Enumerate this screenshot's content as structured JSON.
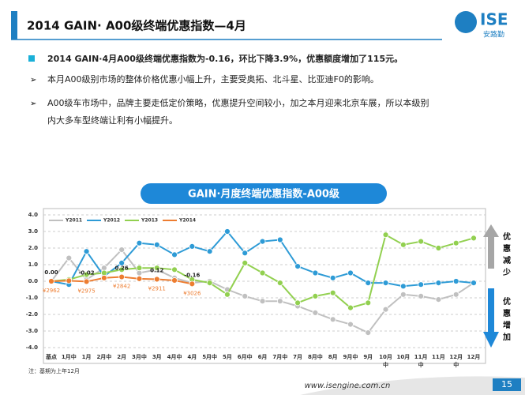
{
  "header": {
    "title": "2014 GAIN· A00级终端优惠指数—4月",
    "logo": "ISE",
    "logo_sub": "安路勤"
  },
  "bullets": [
    [
      "2014 GAIN·4月A00级终端优惠指数为-0.16，环比下降3.9%，优惠额度增加了115元。"
    ],
    [
      "本月A00级别市场的整体价格优惠小幅上升，主要受奥拓、北斗星、比亚迪F0的影响。"
    ],
    [
      "A00级车市场中，品牌主要走低定价策略，优惠提升空间较小，加之本月迎来北京车展，所以本级别",
      "内大多车型终端让利有小幅提升。"
    ]
  ],
  "chart_data": {
    "type": "line",
    "title": "GAIN·月度终端优惠指数-A00级",
    "categories": [
      "基点",
      "1月中",
      "1月",
      "2月中",
      "2月",
      "3月中",
      "3月",
      "4月中",
      "4月",
      "5月中",
      "5月",
      "6月中",
      "6月",
      "7月中",
      "7月",
      "8月中",
      "8月",
      "9月中",
      "9月",
      "10月中",
      "10月",
      "11月中",
      "11月",
      "12月中",
      "12月"
    ],
    "ylim": [
      -4,
      4
    ],
    "yticks": [
      {
        "value": -4,
        "label": "-4.0"
      },
      {
        "value": -3,
        "label": "-3.0"
      },
      {
        "value": -2,
        "label": "-2.0"
      },
      {
        "value": -1,
        "label": "-1.0"
      },
      {
        "value": 0,
        "label": "0.0"
      },
      {
        "value": 1,
        "label": "1.0"
      },
      {
        "value": 2,
        "label": "2.0"
      },
      {
        "value": 3,
        "label": "3.0"
      },
      {
        "value": 4,
        "label": "4.0"
      }
    ],
    "grid": true,
    "legend": "top-left",
    "series": [
      {
        "name": "Y2011",
        "color": "#c0c0c0",
        "values": [
          0,
          1.4,
          0.1,
          0.8,
          1.9,
          0.5,
          0.7,
          0.2,
          -0.1,
          0,
          -0.5,
          -0.9,
          -1.2,
          -1.2,
          -1.5,
          -1.9,
          -2.3,
          -2.6,
          -3.1,
          -1.7,
          -0.8,
          -0.9,
          -1.1,
          -0.8,
          -0.1
        ]
      },
      {
        "name": "Y2012",
        "color": "#2e9bd6",
        "values": [
          0,
          -0.2,
          1.8,
          0.3,
          1.1,
          2.3,
          2.2,
          1.6,
          2.1,
          1.8,
          3.0,
          1.7,
          2.4,
          2.5,
          0.9,
          0.5,
          0.2,
          0.5,
          -0.1,
          -0.1,
          -0.3,
          -0.2,
          -0.1,
          0.0,
          -0.1
        ]
      },
      {
        "name": "Y2013",
        "color": "#92d050",
        "values": [
          0,
          0.1,
          0.4,
          0.5,
          0.7,
          0.8,
          0.8,
          0.7,
          0.1,
          -0.1,
          -0.8,
          1.1,
          0.5,
          -0.1,
          -1.3,
          -0.9,
          -0.7,
          -1.6,
          -1.3,
          2.8,
          2.2,
          2.4,
          2.0,
          2.3,
          2.6
        ]
      },
      {
        "name": "Y2014",
        "color": "#ed7d31",
        "values": [
          0,
          0.03,
          -0.02,
          0.2,
          0.26,
          0.15,
          0.12,
          0.05,
          -0.16,
          null,
          null,
          null,
          null,
          null,
          null,
          null,
          null,
          null,
          null,
          null,
          null,
          null,
          null,
          null,
          null
        ],
        "value_labels": [
          "0.00",
          null,
          "-0.02",
          null,
          "0.26",
          null,
          "0.12",
          null,
          "-0.16",
          null,
          null,
          null,
          null,
          null,
          null,
          null,
          null,
          null,
          null,
          null,
          null,
          null,
          null,
          null,
          null
        ],
        "amount_labels": [
          "¥2962",
          null,
          "¥2975",
          null,
          "¥2842",
          null,
          "¥2911",
          null,
          "¥3026",
          null,
          null,
          null,
          null,
          null,
          null,
          null,
          null,
          null,
          null,
          null,
          null,
          null,
          null,
          null,
          null
        ]
      }
    ],
    "up_label": "优惠减少",
    "down_label": "优惠增加",
    "note": "注：基期为上年12月"
  },
  "footer": {
    "url": "www.isengine.com.cn",
    "page": "15"
  }
}
